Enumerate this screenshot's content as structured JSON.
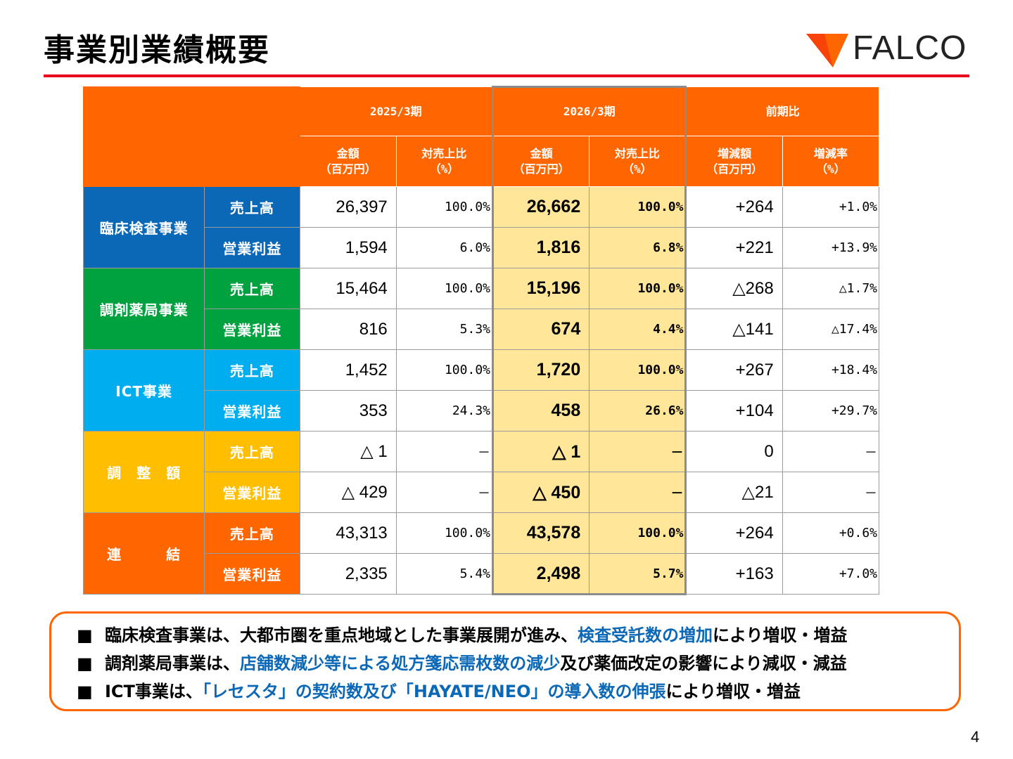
{
  "title": "事業別業績概要",
  "logo": {
    "text": "FALCO",
    "mark_color": "#ff6600"
  },
  "table": {
    "period_2025": "2025/3期",
    "period_2026": "2026/3期",
    "yoy": "前期比",
    "col_amount": "金額",
    "col_amount_unit": "（百万円）",
    "col_ratio": "対売上比",
    "col_ratio_unit": "（%）",
    "col_change": "増減額",
    "col_change_unit": "（百万円）",
    "col_rate": "増減率",
    "col_rate_unit": "（%）",
    "segments": [
      {
        "name": "臨床検査事業",
        "color": "#0b68b7",
        "rows": [
          {
            "item": "売上高",
            "amt25": "26,397",
            "ratio25": "100.0%",
            "amt26": "26,662",
            "ratio26": "100.0%",
            "change": "+264",
            "rate": "+1.0%"
          },
          {
            "item": "営業利益",
            "amt25": "1,594",
            "ratio25": "6.0%",
            "amt26": "1,816",
            "ratio26": "6.8%",
            "change": "+221",
            "rate": "+13.9%"
          }
        ]
      },
      {
        "name": "調剤薬局事業",
        "color": "#00a23f",
        "rows": [
          {
            "item": "売上高",
            "amt25": "15,464",
            "ratio25": "100.0%",
            "amt26": "15,196",
            "ratio26": "100.0%",
            "change": "△268",
            "rate": "△1.7%"
          },
          {
            "item": "営業利益",
            "amt25": "816",
            "ratio25": "5.3%",
            "amt26": "674",
            "ratio26": "4.4%",
            "change": "△141",
            "rate": "△17.4%"
          }
        ]
      },
      {
        "name": "ICT事業",
        "color": "#00aeef",
        "rows": [
          {
            "item": "売上高",
            "amt25": "1,452",
            "ratio25": "100.0%",
            "amt26": "1,720",
            "ratio26": "100.0%",
            "change": "+267",
            "rate": "+18.4%"
          },
          {
            "item": "営業利益",
            "amt25": "353",
            "ratio25": "24.3%",
            "amt26": "458",
            "ratio26": "26.6%",
            "change": "+104",
            "rate": "+29.7%"
          }
        ]
      },
      {
        "name": "調　整　額",
        "color": "#ffbf00",
        "rows": [
          {
            "item": "売上高",
            "amt25": "△ 1",
            "ratio25": "－",
            "amt26": "△ 1",
            "ratio26": "－",
            "change": "0",
            "rate": "－"
          },
          {
            "item": "営業利益",
            "amt25": "△ 429",
            "ratio25": "－",
            "amt26": "△ 450",
            "ratio26": "－",
            "change": "△21",
            "rate": "－"
          }
        ]
      },
      {
        "name": "連　　　結",
        "color": "#ff6600",
        "rows": [
          {
            "item": "売上高",
            "amt25": "43,313",
            "ratio25": "100.0%",
            "amt26": "43,578",
            "ratio26": "100.0%",
            "change": "+264",
            "rate": "+0.6%"
          },
          {
            "item": "営業利益",
            "amt25": "2,335",
            "ratio25": "5.4%",
            "amt26": "2,498",
            "ratio26": "5.7%",
            "change": "+163",
            "rate": "+7.0%"
          }
        ]
      }
    ]
  },
  "summary": {
    "bullet_mark": "■",
    "lines": [
      {
        "pre": "臨床検査事業は、大都市圏を重点地域とした事業展開が進み、",
        "highlight": "検査受託数の増加",
        "post": "により増収・増益"
      },
      {
        "pre": "調剤薬局事業は、",
        "highlight": "店舗数減少等による処方箋応需枚数の減少",
        "post": "及び薬価改定の影響により減収・減益"
      },
      {
        "pre": "ICT事業は、",
        "highlight": "「レセスタ」の契約数及び「HAYATE/NEO」の導入数の伸張",
        "post": "により増収・増益"
      }
    ],
    "highlight_color": "#0b68b7",
    "border_color": "#ff6600"
  },
  "page_number": "4"
}
